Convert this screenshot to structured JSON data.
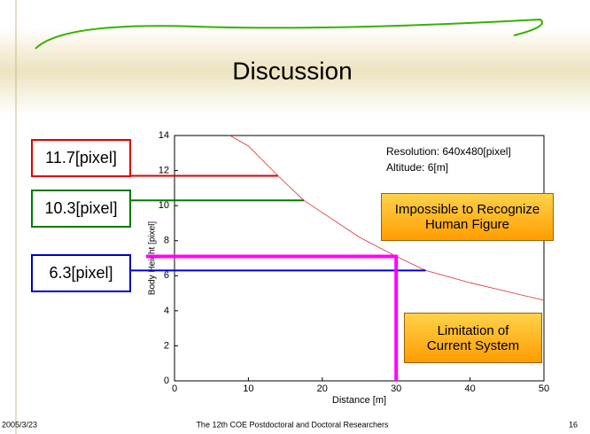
{
  "slide": {
    "title": "Discussion",
    "date": "2005/3/23",
    "footer": "The 12th COE Postdoctoral and Doctoral Researchers",
    "page": "16"
  },
  "chart_data": {
    "type": "line",
    "x_label": "Distance [m]",
    "y_label": "Body Height [pixel]",
    "x": [
      7.5,
      10,
      14,
      17.5,
      20,
      25,
      30,
      34,
      40,
      45,
      50
    ],
    "series": [
      {
        "color": "#e03030",
        "values": [
          14,
          13.4,
          11.7,
          10.3,
          9.6,
          8.2,
          7.1,
          6.3,
          5.6,
          5.1,
          4.6
        ]
      }
    ],
    "xlim": [
      0,
      50
    ],
    "xticks": [
      0,
      10,
      20,
      30,
      40,
      50
    ],
    "ylim": [
      0,
      14
    ],
    "yticks": [
      0,
      2,
      4,
      6,
      8,
      10,
      12,
      14
    ],
    "annotations": [
      "Resolution: 640x480[pixel]",
      "Altitude: 6[m]"
    ],
    "reference_lines": [
      {
        "label": "11.7[pixel]",
        "y": 11.7,
        "x_end": 14,
        "color": "#e00000"
      },
      {
        "label": "10.3[pixel]",
        "y": 10.3,
        "x_end": 17.5,
        "color": "#007a00"
      },
      {
        "label": "6.3[pixel]",
        "y": 6.3,
        "x_end": 34,
        "color": "#0000c8"
      },
      {
        "y": 7.1,
        "x_end": 30,
        "color": "#ff00ff"
      }
    ],
    "callouts": [
      [
        "Impossible to Recognize",
        "Human Figure"
      ],
      [
        "Limitation of",
        "Current System"
      ]
    ]
  }
}
